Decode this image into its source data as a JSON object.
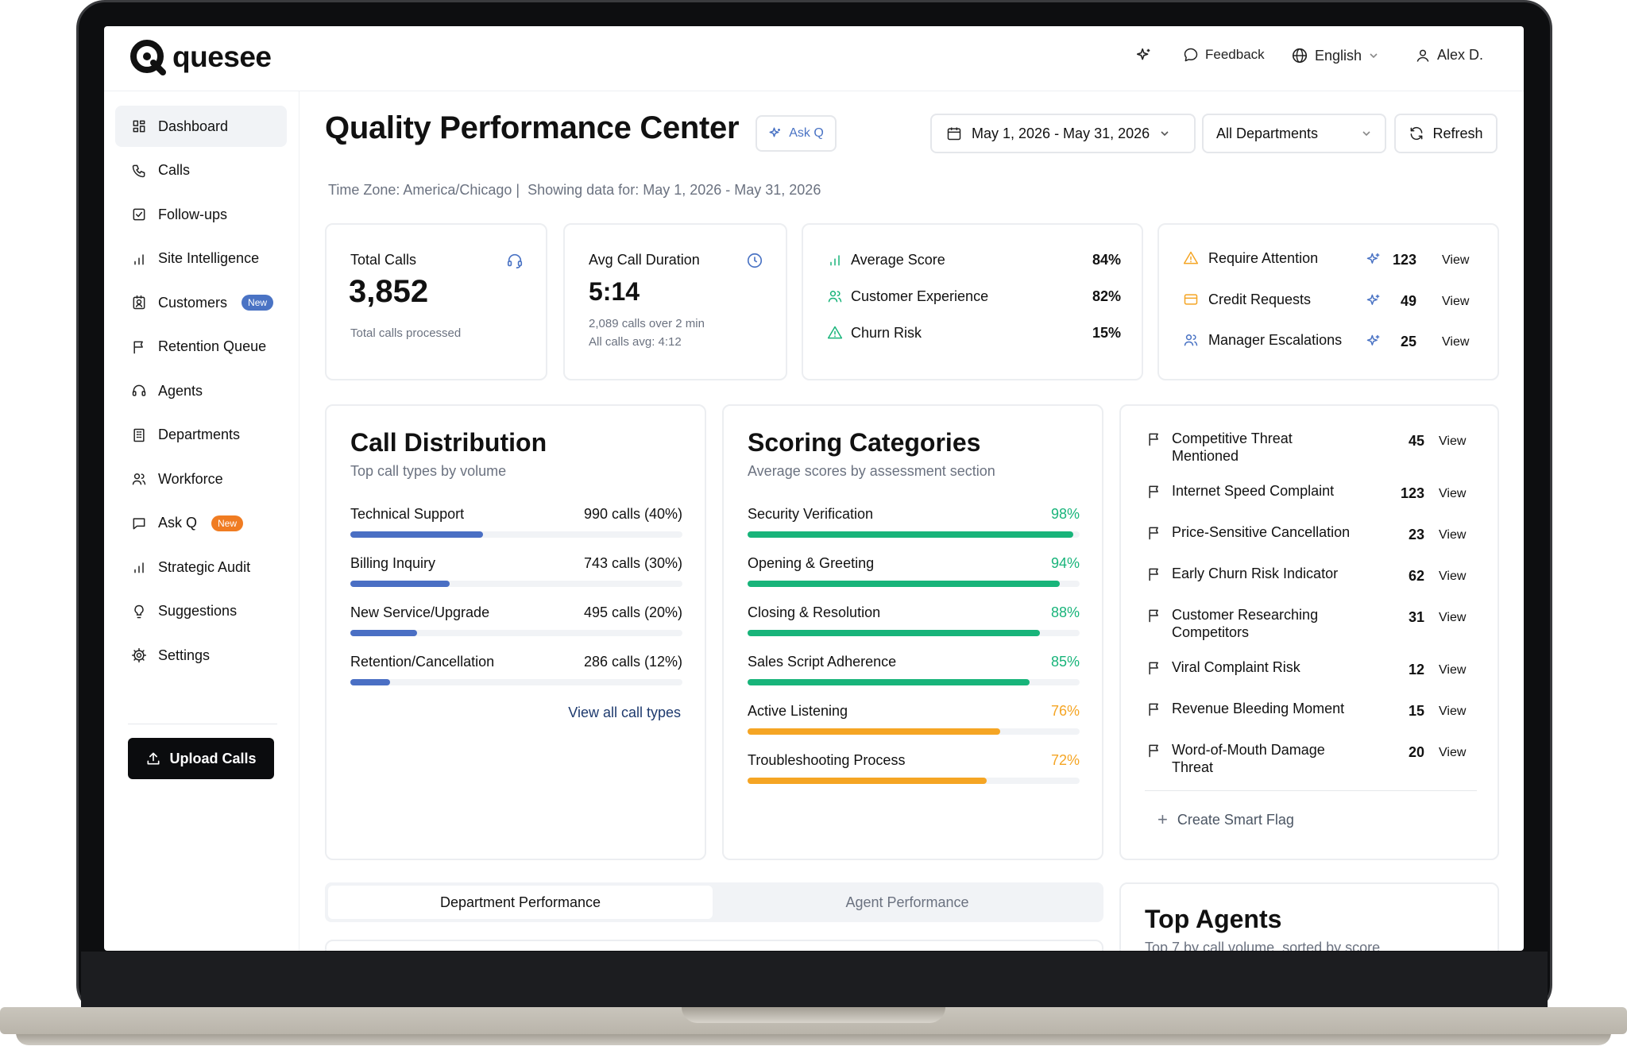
{
  "brand": {
    "name": "quesee"
  },
  "header": {
    "feedback_label": "Feedback",
    "language_label": "English",
    "user_label": "Alex D."
  },
  "sidebar": {
    "items": [
      {
        "label": "Dashboard",
        "icon": "dashboard-icon",
        "active": true
      },
      {
        "label": "Calls",
        "icon": "phone-icon"
      },
      {
        "label": "Follow-ups",
        "icon": "checkbox-icon"
      },
      {
        "label": "Site Intelligence",
        "icon": "bar-chart-icon"
      },
      {
        "label": "Customers",
        "icon": "contact-card-icon",
        "badge": "New"
      },
      {
        "label": "Retention Queue",
        "icon": "flag-icon"
      },
      {
        "label": "Agents",
        "icon": "headset-icon"
      },
      {
        "label": "Departments",
        "icon": "building-icon"
      },
      {
        "label": "Workforce",
        "icon": "users-icon"
      },
      {
        "label": "Ask Q",
        "icon": "chat-icon",
        "badge": "New"
      },
      {
        "label": "Strategic Audit",
        "icon": "bar-chart-icon"
      },
      {
        "label": "Suggestions",
        "icon": "lightbulb-icon"
      },
      {
        "label": "Settings",
        "icon": "gear-icon"
      }
    ],
    "upload_label": "Upload Calls",
    "badge_colors": {
      "Customers": "#4a73c4",
      "Ask Q": "#f07c22"
    }
  },
  "page": {
    "title": "Quality Performance Center",
    "ask_q_label": "Ask Q",
    "date_range": "May 1, 2026 - May 31, 2026",
    "department_select": "All Departments",
    "refresh_label": "Refresh",
    "timezone": "Time Zone: America/Chicago |  Showing data for: May 1, 2026 - May 31, 2026"
  },
  "stats": {
    "total_calls": {
      "label": "Total Calls",
      "value": "3,852",
      "sub": "Total calls processed"
    },
    "avg_duration": {
      "label": "Avg Call Duration",
      "value": "5:14",
      "sub1": "2,089 calls over 2 min",
      "sub2": "All calls avg: 4:12"
    },
    "scores": [
      {
        "label": "Average Score",
        "value": "84%"
      },
      {
        "label": "Customer Experience",
        "value": "82%"
      },
      {
        "label": "Churn Risk",
        "value": "15%"
      }
    ],
    "attention": [
      {
        "label": "Require Attention",
        "count": "123",
        "view": "View"
      },
      {
        "label": "Credit Requests",
        "count": "49",
        "view": "View"
      },
      {
        "label": "Manager Escalations",
        "count": "25",
        "view": "View"
      }
    ]
  },
  "call_distribution": {
    "title": "Call Distribution",
    "subtitle": "Top call types by volume",
    "rows": [
      {
        "label": "Technical Support",
        "value": "990 calls (40%)",
        "pct": 40
      },
      {
        "label": "Billing Inquiry",
        "value": "743 calls (30%)",
        "pct": 30
      },
      {
        "label": "New Service/Upgrade",
        "value": "495 calls (20%)",
        "pct": 20
      },
      {
        "label": "Retention/Cancellation",
        "value": "286 calls (12%)",
        "pct": 12
      }
    ],
    "link": "View all call types"
  },
  "scoring": {
    "title": "Scoring Categories",
    "subtitle": "Average scores by assessment section",
    "rows": [
      {
        "label": "Security Verification",
        "value": "98%",
        "pct": 98,
        "color": "#18b47a"
      },
      {
        "label": "Opening & Greeting",
        "value": "94%",
        "pct": 94,
        "color": "#18b47a"
      },
      {
        "label": "Closing & Resolution",
        "value": "88%",
        "pct": 88,
        "color": "#18b47a"
      },
      {
        "label": "Sales Script Adherence",
        "value": "85%",
        "pct": 85,
        "color": "#18b47a"
      },
      {
        "label": "Active Listening",
        "value": "76%",
        "pct": 76,
        "color": "#f5a524"
      },
      {
        "label": "Troubleshooting Process",
        "value": "72%",
        "pct": 72,
        "color": "#f5a524"
      }
    ]
  },
  "smart_flags": {
    "rows": [
      {
        "label": "Competitive Threat Mentioned",
        "count": "45",
        "view": "View"
      },
      {
        "label": "Internet Speed Complaint",
        "count": "123",
        "view": "View"
      },
      {
        "label": "Price-Sensitive Cancellation",
        "count": "23",
        "view": "View"
      },
      {
        "label": "Early Churn Risk Indicator",
        "count": "62",
        "view": "View"
      },
      {
        "label": "Customer Researching Competitors",
        "count": "31",
        "view": "View"
      },
      {
        "label": "Viral Complaint Risk",
        "count": "12",
        "view": "View"
      },
      {
        "label": "Revenue Bleeding Moment",
        "count": "15",
        "view": "View"
      },
      {
        "label": "Word-of-Mouth Damage Threat",
        "count": "20",
        "view": "View"
      }
    ],
    "create_label": "Create Smart Flag"
  },
  "performance_tabs": {
    "tab1": "Department Performance",
    "tab2": "Agent Performance"
  },
  "top_agents": {
    "title": "Top Agents",
    "subtitle": "Top 7 by call volume, sorted by score"
  },
  "colors": {
    "blue_bar": "#4a6fc4",
    "accent_blue": "#4a73c4",
    "green": "#18b47a",
    "orange": "#f5a524"
  }
}
